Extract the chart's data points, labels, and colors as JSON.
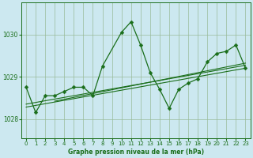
{
  "title": "Graphe pression niveau de la mer (hPa)",
  "bg_color": "#cce8f0",
  "grid_color": "#99bb99",
  "line_color": "#1a6e1a",
  "xlim": [
    -0.5,
    23.5
  ],
  "ylim": [
    1027.55,
    1030.75
  ],
  "yticks": [
    1028,
    1029,
    1030
  ],
  "xticks": [
    0,
    1,
    2,
    3,
    4,
    5,
    6,
    7,
    8,
    9,
    10,
    11,
    12,
    13,
    14,
    15,
    16,
    17,
    18,
    19,
    20,
    21,
    22,
    23
  ],
  "series1_x": [
    0,
    1,
    2,
    3,
    4,
    5,
    6,
    7,
    8,
    10,
    11,
    12,
    13,
    14,
    15,
    16,
    17,
    18,
    19,
    20,
    21,
    22,
    23
  ],
  "series1_y": [
    1028.75,
    1028.15,
    1028.55,
    1028.55,
    1028.65,
    1028.75,
    1028.75,
    1028.55,
    1029.25,
    1030.05,
    1030.3,
    1029.75,
    1029.1,
    1028.7,
    1028.25,
    1028.7,
    1028.85,
    1028.95,
    1029.35,
    1029.55,
    1029.6,
    1029.75,
    1029.2
  ],
  "trend1_x": [
    0,
    23
  ],
  "trend1_y": [
    1028.28,
    1029.2
  ],
  "trend2_x": [
    0,
    23
  ],
  "trend2_y": [
    1028.35,
    1029.27
  ],
  "trend3_x": [
    3,
    23
  ],
  "trend3_y": [
    1028.42,
    1029.32
  ]
}
